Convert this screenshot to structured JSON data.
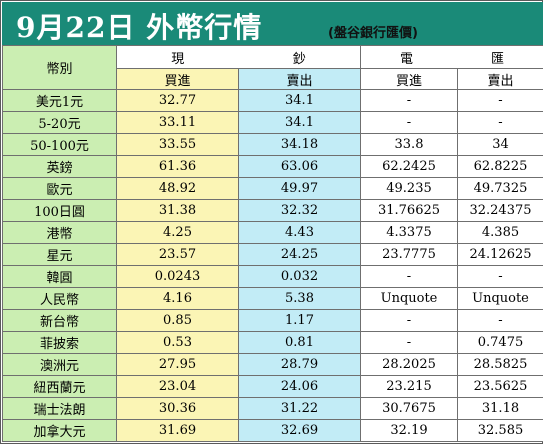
{
  "title": {
    "main": "9月22日 外幣行情",
    "sub": "(盤谷銀行匯價)"
  },
  "header": {
    "currency_label": "幣別",
    "cash_group": [
      "現",
      "鈔"
    ],
    "wire_group": [
      "電",
      "匯"
    ],
    "buy_label": "買進",
    "sell_label": "賣出"
  },
  "rows": [
    {
      "name": "美元1元",
      "cash_buy": "32.77",
      "cash_sell": "34.1",
      "wire_buy": "-",
      "wire_sell": "-"
    },
    {
      "name": "5-20元",
      "cash_buy": "33.11",
      "cash_sell": "34.1",
      "wire_buy": "-",
      "wire_sell": "-"
    },
    {
      "name": "50-100元",
      "cash_buy": "33.55",
      "cash_sell": "34.18",
      "wire_buy": "33.8",
      "wire_sell": "34"
    },
    {
      "name": "英鎊",
      "cash_buy": "61.36",
      "cash_sell": "63.06",
      "wire_buy": "62.2425",
      "wire_sell": "62.8225"
    },
    {
      "name": "歐元",
      "cash_buy": "48.92",
      "cash_sell": "49.97",
      "wire_buy": "49.235",
      "wire_sell": "49.7325"
    },
    {
      "name": "100日圓",
      "cash_buy": "31.38",
      "cash_sell": "32.32",
      "wire_buy": "31.76625",
      "wire_sell": "32.24375"
    },
    {
      "name": "港幣",
      "cash_buy": "4.25",
      "cash_sell": "4.43",
      "wire_buy": "4.3375",
      "wire_sell": "4.385"
    },
    {
      "name": "星元",
      "cash_buy": "23.57",
      "cash_sell": "24.25",
      "wire_buy": "23.7775",
      "wire_sell": "24.12625"
    },
    {
      "name": "韓圓",
      "cash_buy": "0.0243",
      "cash_sell": "0.032",
      "wire_buy": "-",
      "wire_sell": "-"
    },
    {
      "name": "人民幣",
      "cash_buy": "4.16",
      "cash_sell": "5.38",
      "wire_buy": "Unquote",
      "wire_sell": "Unquote"
    },
    {
      "name": "新台幣",
      "cash_buy": "0.85",
      "cash_sell": "1.17",
      "wire_buy": "-",
      "wire_sell": "-"
    },
    {
      "name": "菲披索",
      "cash_buy": "0.53",
      "cash_sell": "0.81",
      "wire_buy": "-",
      "wire_sell": "0.7475"
    },
    {
      "name": "澳洲元",
      "cash_buy": "27.95",
      "cash_sell": "28.79",
      "wire_buy": "28.2025",
      "wire_sell": "28.5825"
    },
    {
      "name": "紐西蘭元",
      "cash_buy": "23.04",
      "cash_sell": "24.06",
      "wire_buy": "23.215",
      "wire_sell": "23.5625"
    },
    {
      "name": "瑞士法朗",
      "cash_buy": "30.36",
      "cash_sell": "31.22",
      "wire_buy": "30.7675",
      "wire_sell": "31.18"
    },
    {
      "name": "加拿大元",
      "cash_buy": "31.69",
      "cash_sell": "32.69",
      "wire_buy": "32.19",
      "wire_sell": "32.585"
    }
  ],
  "colors": {
    "title_bar": "#1a8a78",
    "name_column": "#cbeeb2",
    "cash_buy_column": "#fbf5b5",
    "cash_sell_column": "#c2ecf6",
    "wire_columns": "#ffffff"
  }
}
